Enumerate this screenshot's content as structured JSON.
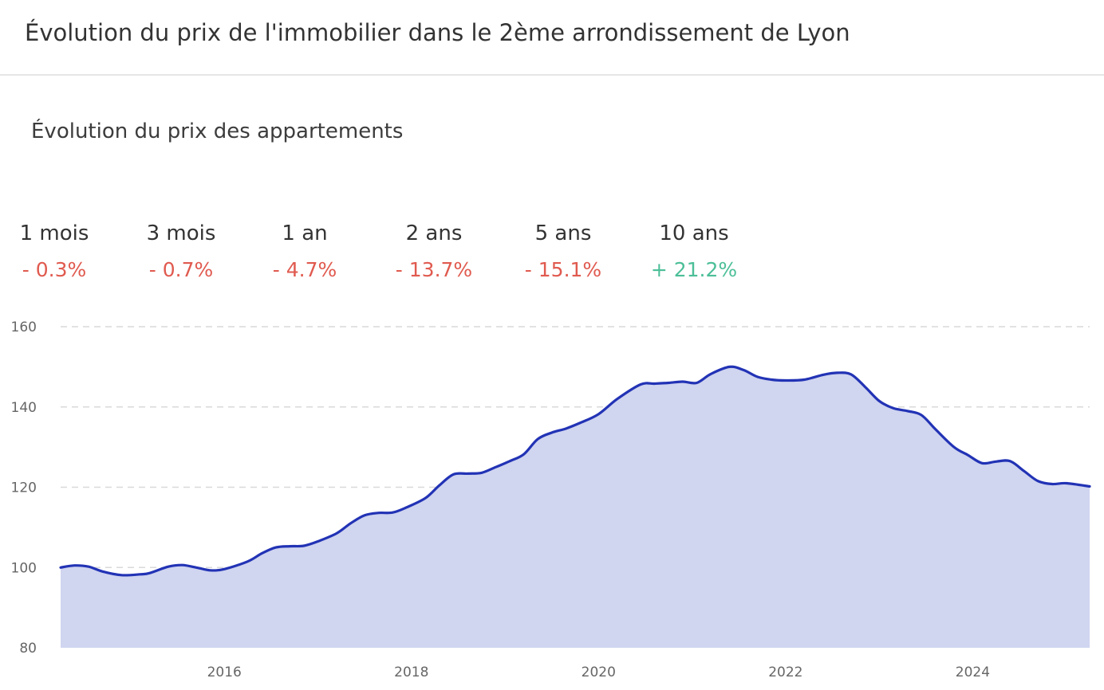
{
  "header": {
    "title": "Évolution du prix de l'immobilier dans le 2ème arrondissement de Lyon"
  },
  "chart_title": "Évolution du prix des appartements",
  "stats": [
    {
      "label": "1 mois",
      "value": "- 0.3%",
      "trend": "negative"
    },
    {
      "label": "3 mois",
      "value": "- 0.7%",
      "trend": "negative"
    },
    {
      "label": "1 an",
      "value": "- 4.7%",
      "trend": "negative"
    },
    {
      "label": "2 ans",
      "value": "- 13.7%",
      "trend": "negative"
    },
    {
      "label": "5 ans",
      "value": "- 15.1%",
      "trend": "negative"
    },
    {
      "label": "10 ans",
      "value": "+ 21.2%",
      "trend": "positive"
    }
  ],
  "colors": {
    "negative": "#e05a4f",
    "positive": "#4cbf98",
    "line": "#2233b5",
    "area": "#d0d5f0",
    "grid": "#d9d9d9"
  },
  "chart_data": {
    "type": "area",
    "title": "Évolution du prix des appartements",
    "xlabel": "",
    "ylabel": "",
    "ylim": [
      80,
      160
    ],
    "xlim": [
      2014.25,
      2025.25
    ],
    "y_ticks": [
      80,
      100,
      120,
      140,
      160
    ],
    "x_ticks": [
      2016,
      2018,
      2020,
      2022,
      2024
    ],
    "grid": "horizontal-dashed",
    "series": [
      {
        "values": [
          [
            2014.25,
            100.0
          ],
          [
            2014.4,
            100.5
          ],
          [
            2014.55,
            100.2
          ],
          [
            2014.7,
            99.0
          ],
          [
            2014.9,
            98.1
          ],
          [
            2015.1,
            98.3
          ],
          [
            2015.2,
            98.6
          ],
          [
            2015.4,
            100.2
          ],
          [
            2015.55,
            100.6
          ],
          [
            2015.7,
            100.0
          ],
          [
            2015.85,
            99.3
          ],
          [
            2016.0,
            99.6
          ],
          [
            2016.25,
            101.5
          ],
          [
            2016.4,
            103.5
          ],
          [
            2016.55,
            105.0
          ],
          [
            2016.7,
            105.3
          ],
          [
            2016.85,
            105.4
          ],
          [
            2017.0,
            106.5
          ],
          [
            2017.2,
            108.5
          ],
          [
            2017.35,
            111.0
          ],
          [
            2017.5,
            113.0
          ],
          [
            2017.65,
            113.6
          ],
          [
            2017.8,
            113.7
          ],
          [
            2017.95,
            115.0
          ],
          [
            2018.15,
            117.3
          ],
          [
            2018.3,
            120.5
          ],
          [
            2018.45,
            123.2
          ],
          [
            2018.6,
            123.4
          ],
          [
            2018.75,
            123.6
          ],
          [
            2018.9,
            125.0
          ],
          [
            2019.05,
            126.5
          ],
          [
            2019.2,
            128.2
          ],
          [
            2019.35,
            132.0
          ],
          [
            2019.5,
            133.6
          ],
          [
            2019.65,
            134.6
          ],
          [
            2019.8,
            136.0
          ],
          [
            2020.0,
            138.2
          ],
          [
            2020.2,
            142.0
          ],
          [
            2020.45,
            145.6
          ],
          [
            2020.6,
            145.8
          ],
          [
            2020.75,
            146.0
          ],
          [
            2020.9,
            146.3
          ],
          [
            2021.05,
            146.0
          ],
          [
            2021.2,
            148.2
          ],
          [
            2021.4,
            150.0
          ],
          [
            2021.55,
            149.2
          ],
          [
            2021.7,
            147.5
          ],
          [
            2021.85,
            146.8
          ],
          [
            2022.0,
            146.6
          ],
          [
            2022.2,
            146.8
          ],
          [
            2022.4,
            148.0
          ],
          [
            2022.55,
            148.5
          ],
          [
            2022.7,
            148.1
          ],
          [
            2022.85,
            145.0
          ],
          [
            2023.0,
            141.5
          ],
          [
            2023.15,
            139.7
          ],
          [
            2023.3,
            139.0
          ],
          [
            2023.45,
            138.0
          ],
          [
            2023.6,
            134.5
          ],
          [
            2023.8,
            130.0
          ],
          [
            2023.95,
            128.0
          ],
          [
            2024.1,
            126.0
          ],
          [
            2024.25,
            126.4
          ],
          [
            2024.4,
            126.5
          ],
          [
            2024.55,
            124.0
          ],
          [
            2024.7,
            121.5
          ],
          [
            2024.85,
            120.8
          ],
          [
            2025.0,
            121.0
          ],
          [
            2025.25,
            120.2
          ]
        ]
      }
    ]
  }
}
